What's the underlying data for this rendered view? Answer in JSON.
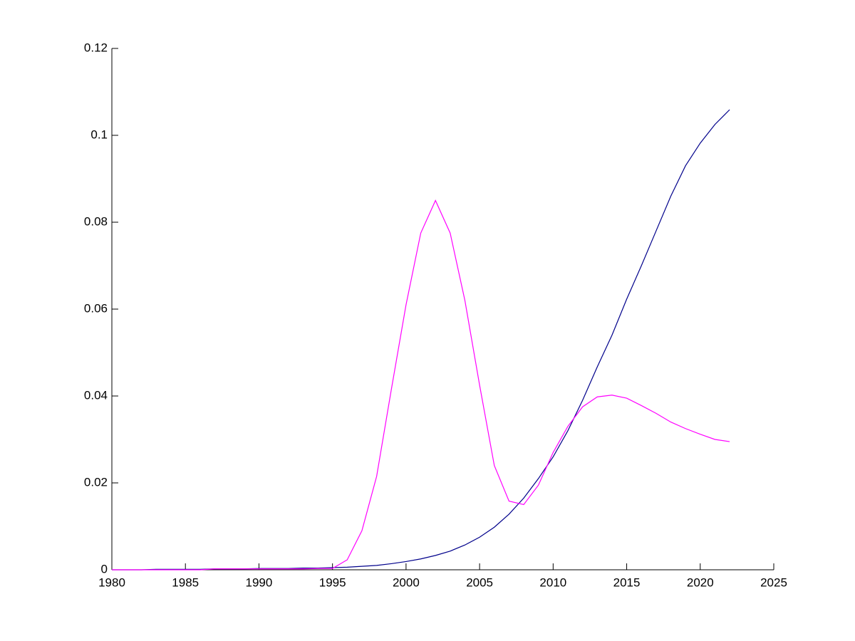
{
  "chart_data": {
    "type": "line",
    "x": [
      1980,
      1981,
      1982,
      1983,
      1984,
      1985,
      1986,
      1987,
      1988,
      1989,
      1990,
      1991,
      1992,
      1993,
      1994,
      1995,
      1996,
      1997,
      1998,
      1999,
      2000,
      2001,
      2002,
      2003,
      2004,
      2005,
      2006,
      2007,
      2008,
      2009,
      2010,
      2011,
      2012,
      2013,
      2014,
      2015,
      2016,
      2017,
      2018,
      2019,
      2020,
      2021,
      2022
    ],
    "series": [
      {
        "color": "#00008b",
        "values": [
          0,
          0,
          0,
          0.0001,
          0.0001,
          0.0001,
          0.0001,
          0.0002,
          0.0002,
          0.0002,
          0.0003,
          0.0003,
          0.0003,
          0.0004,
          0.0004,
          0.0005,
          0.0006,
          0.0008,
          0.001,
          0.0014,
          0.0019,
          0.0025,
          0.0033,
          0.0043,
          0.0057,
          0.0075,
          0.0098,
          0.0128,
          0.0165,
          0.021,
          0.026,
          0.032,
          0.039,
          0.0467,
          0.054,
          0.0623,
          0.07,
          0.078,
          0.086,
          0.093,
          0.0982,
          0.1025,
          0.1059
        ]
      },
      {
        "color": "#ff00ff",
        "values": [
          0,
          0,
          0,
          0,
          0,
          0,
          0,
          0.0002,
          0.0002,
          0.0002,
          0.0002,
          0.0002,
          0.0002,
          0.0002,
          0.0003,
          0.0003,
          0.0023,
          0.009,
          0.0215,
          0.0415,
          0.061,
          0.0775,
          0.085,
          0.0775,
          0.062,
          0.0425,
          0.024,
          0.0158,
          0.015,
          0.0195,
          0.027,
          0.033,
          0.0375,
          0.0398,
          0.0402,
          0.0395,
          0.0378,
          0.036,
          0.034,
          0.0325,
          0.0312,
          0.03,
          0.0295
        ]
      }
    ],
    "xlim": [
      1980,
      2025
    ],
    "xticks": [
      1980,
      1985,
      1990,
      1995,
      2000,
      2005,
      2010,
      2015,
      2020,
      2025
    ],
    "ylim": [
      0,
      0.12
    ],
    "yticks": [
      0,
      0.02,
      0.04,
      0.06,
      0.08,
      0.1,
      0.12
    ]
  }
}
